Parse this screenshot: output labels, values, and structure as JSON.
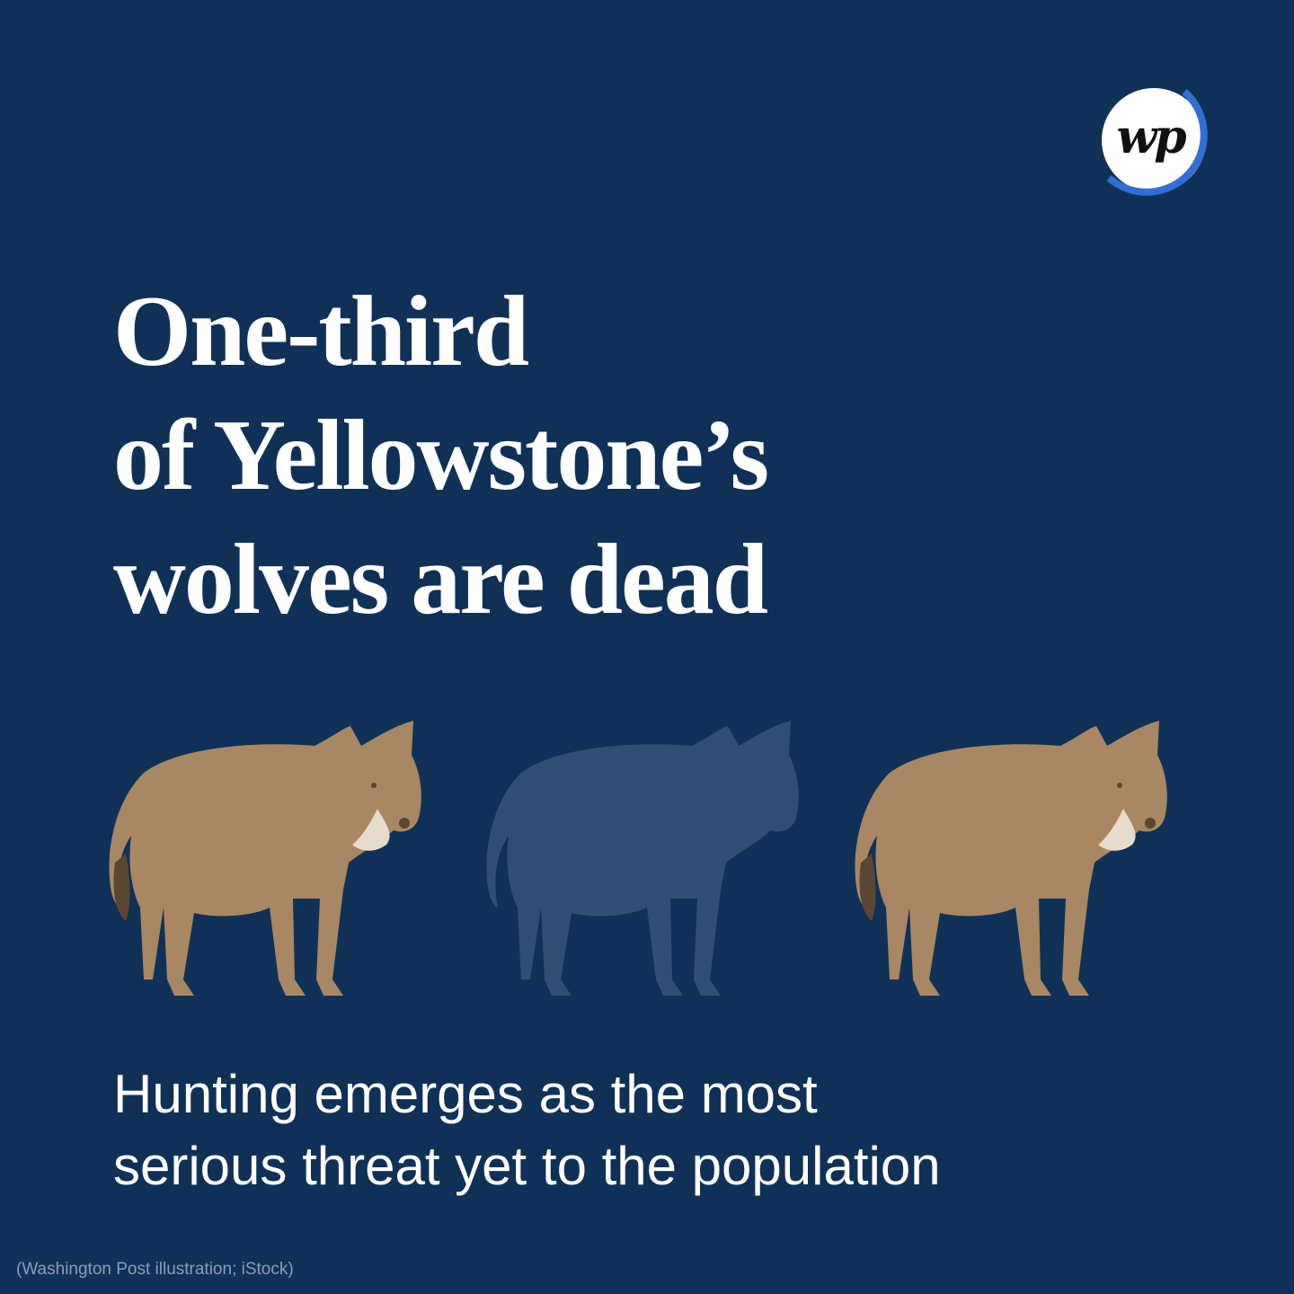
{
  "brand": {
    "logo_text": "wp",
    "logo_icon": "washington-post-logo-icon",
    "ring_color": "#2f6fd6"
  },
  "headline": {
    "line1": "One-third",
    "line2": "of Yellowstone’s",
    "line3": "wolves are dead"
  },
  "illustration": {
    "icon": "wolf-icon",
    "wolf_count": 3,
    "faded_wolf_count": 1,
    "wolf_color": "#a88762",
    "faded_wolf_color": "#6d7f95"
  },
  "subhead": {
    "line1": "Hunting emerges as the most",
    "line2": "serious threat yet to the population"
  },
  "credit": "(Washington Post illustration; iStock)",
  "colors": {
    "background": "#0f3158",
    "text": "#ffffff"
  }
}
